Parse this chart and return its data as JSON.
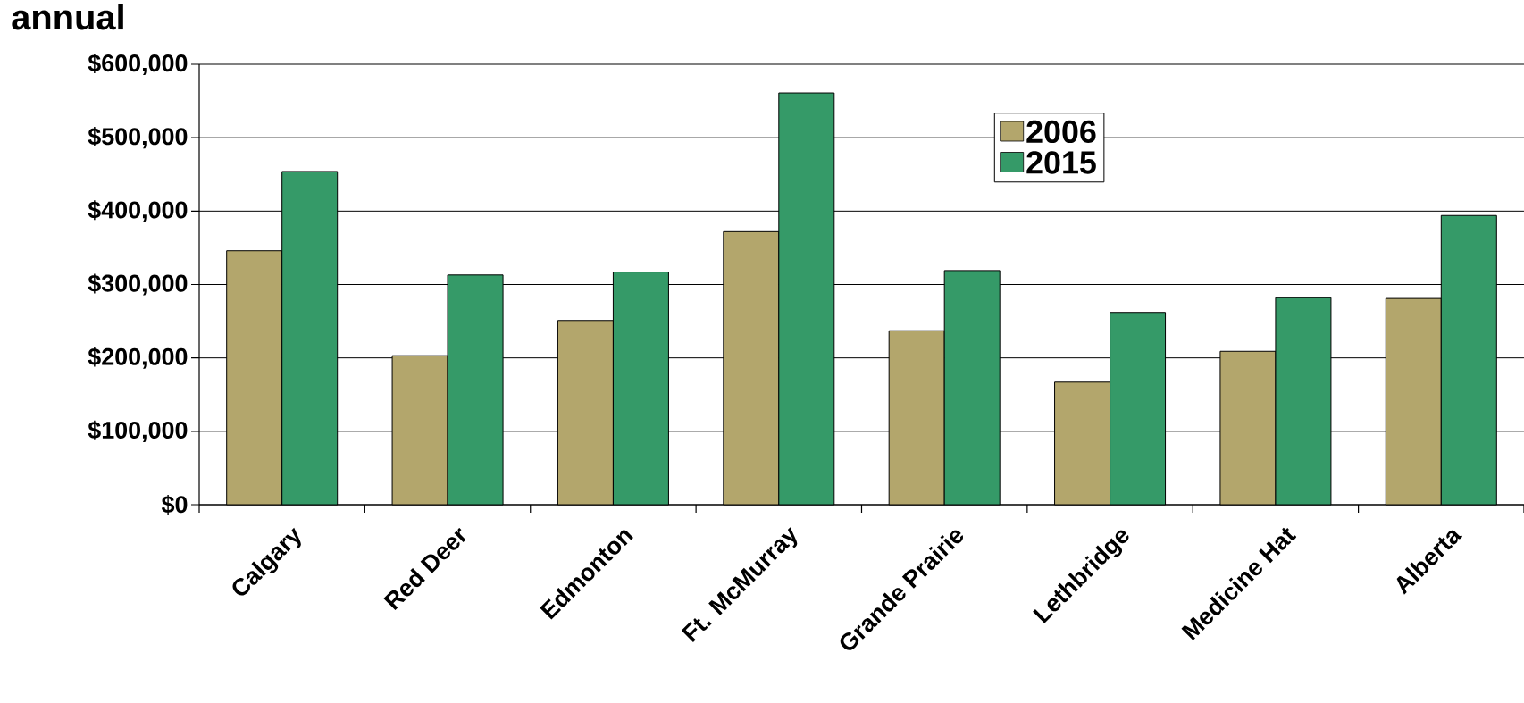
{
  "chart_data": {
    "type": "bar",
    "title": "annual",
    "categories": [
      "Calgary",
      "Red Deer",
      "Edmonton",
      "Ft. McMurray",
      "Grande Prairie",
      "Lethbridge",
      "Medicine Hat",
      "Alberta"
    ],
    "series": [
      {
        "name": "2006",
        "color": "#b3a66c",
        "values": [
          346000,
          203000,
          251000,
          372000,
          237000,
          167000,
          209000,
          281000
        ]
      },
      {
        "name": "2015",
        "color": "#359a68",
        "values": [
          454000,
          313000,
          317000,
          561000,
          319000,
          262000,
          282000,
          394000
        ]
      }
    ],
    "ylim": [
      0,
      600000
    ],
    "yticks": [
      {
        "value": 0,
        "label": "$0"
      },
      {
        "value": 100000,
        "label": "$100,000"
      },
      {
        "value": 200000,
        "label": "$200,000"
      },
      {
        "value": 300000,
        "label": "$300,000"
      },
      {
        "value": 400000,
        "label": "$400,000"
      },
      {
        "value": 500000,
        "label": "$500,000"
      },
      {
        "value": 600000,
        "label": "$600,000"
      }
    ],
    "grid": "y",
    "legend": "top"
  }
}
